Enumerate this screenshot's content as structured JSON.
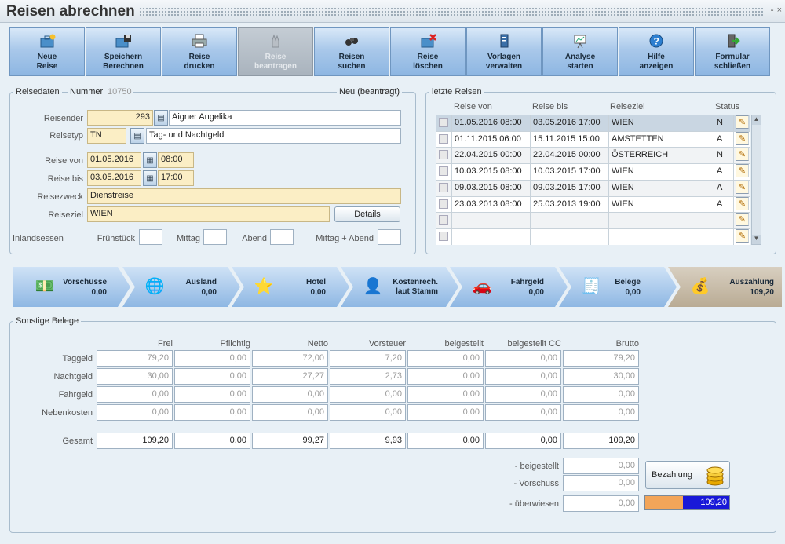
{
  "window": {
    "title": "Reisen abrechnen",
    "min": "▫",
    "close": "×"
  },
  "toolbar": [
    {
      "label": "Neue\nReise",
      "icon": "new-trip-icon",
      "enabled": true
    },
    {
      "label": "Speichern\nBerechnen",
      "icon": "save-icon",
      "enabled": true
    },
    {
      "label": "Reise\ndrucken",
      "icon": "print-icon",
      "enabled": true
    },
    {
      "label": "Reise\nbeantragen",
      "icon": "request-icon",
      "enabled": false
    },
    {
      "label": "Reisen\nsuchen",
      "icon": "binoculars-icon",
      "enabled": true
    },
    {
      "label": "Reise\nlöschen",
      "icon": "delete-icon",
      "enabled": true
    },
    {
      "label": "Vorlagen\nverwalten",
      "icon": "templates-icon",
      "enabled": true
    },
    {
      "label": "Analyse\nstarten",
      "icon": "analysis-icon",
      "enabled": true
    },
    {
      "label": "Hilfe\nanzeigen",
      "icon": "help-icon",
      "enabled": true
    },
    {
      "label": "Formular\nschließen",
      "icon": "exit-icon",
      "enabled": true
    }
  ],
  "reisedaten": {
    "section": "Reisedaten",
    "nummer_label": "Nummer",
    "nummer": "10750",
    "status": "Neu (beantragt)",
    "reisender_label": "Reisender",
    "reisender_id": "293",
    "reisender_name": "Aigner Angelika",
    "reisetyp_label": "Reisetyp",
    "reisetyp_code": "TN",
    "reisetyp_name": "Tag- und Nachtgeld",
    "von_label": "Reise von",
    "von_date": "01.05.2016",
    "von_time": "08:00",
    "bis_label": "Reise bis",
    "bis_date": "03.05.2016",
    "bis_time": "17:00",
    "zweck_label": "Reisezweck",
    "zweck": "Dienstreise",
    "ziel_label": "Reiseziel",
    "ziel": "WIEN",
    "details": "Details",
    "inland_label": "Inlandsessen",
    "fruehstueck": "Frühstück",
    "mittag": "Mittag",
    "abend": "Abend",
    "mittag_abend": "Mittag + Abend"
  },
  "letzte": {
    "section": "letzte Reisen",
    "headers": [
      "Reise von",
      "Reise bis",
      "Reiseziel",
      "Status"
    ],
    "rows": [
      {
        "von": "01.05.2016 08:00",
        "bis": "03.05.2016 17:00",
        "ziel": "WIEN",
        "status": "N"
      },
      {
        "von": "01.11.2015 06:00",
        "bis": "15.11.2015 15:00",
        "ziel": "AMSTETTEN",
        "status": "A"
      },
      {
        "von": "22.04.2015 00:00",
        "bis": "22.04.2015 00:00",
        "ziel": "ÖSTERREICH",
        "status": "N"
      },
      {
        "von": "10.03.2015 08:00",
        "bis": "10.03.2015 17:00",
        "ziel": "WIEN",
        "status": "A"
      },
      {
        "von": "09.03.2015 08:00",
        "bis": "09.03.2015 17:00",
        "ziel": "WIEN",
        "status": "A"
      },
      {
        "von": "23.03.2013 08:00",
        "bis": "25.03.2013 19:00",
        "ziel": "WIEN",
        "status": "A"
      },
      {
        "von": "",
        "bis": "",
        "ziel": "",
        "status": ""
      },
      {
        "von": "",
        "bis": "",
        "ziel": "",
        "status": ""
      }
    ]
  },
  "steps": [
    {
      "label": "Vorschüsse",
      "value": "0,00",
      "icon": "money-icon"
    },
    {
      "label": "Ausland",
      "value": "0,00",
      "icon": "globe-icon"
    },
    {
      "label": "Hotel",
      "value": "0,00",
      "icon": "stars-icon"
    },
    {
      "label": "Kostenrech.\nlaut Stamm",
      "value": "",
      "icon": "person-icon"
    },
    {
      "label": "Fahrgeld",
      "value": "0,00",
      "icon": "car-icon"
    },
    {
      "label": "Belege",
      "value": "0,00",
      "icon": "receipt-icon"
    },
    {
      "label": "Auszahlung",
      "value": "109,20",
      "icon": "payout-icon"
    }
  ],
  "belege": {
    "section": "Sonstige Belege",
    "columns": [
      "Frei",
      "Pflichtig",
      "Netto",
      "Vorsteuer",
      "beigestellt",
      "beigestellt CC",
      "Brutto"
    ],
    "rows": [
      {
        "label": "Taggeld",
        "values": [
          "79,20",
          "0,00",
          "72,00",
          "7,20",
          "0,00",
          "0,00",
          "79,20"
        ]
      },
      {
        "label": "Nachtgeld",
        "values": [
          "30,00",
          "0,00",
          "27,27",
          "2,73",
          "0,00",
          "0,00",
          "30,00"
        ]
      },
      {
        "label": "Fahrgeld",
        "values": [
          "0,00",
          "0,00",
          "0,00",
          "0,00",
          "0,00",
          "0,00",
          "0,00"
        ]
      },
      {
        "label": "Nebenkosten",
        "values": [
          "0,00",
          "0,00",
          "0,00",
          "0,00",
          "0,00",
          "0,00",
          "0,00"
        ]
      }
    ],
    "total": {
      "label": "Gesamt",
      "values": [
        "109,20",
        "0,00",
        "99,27",
        "9,93",
        "0,00",
        "0,00",
        "109,20"
      ]
    },
    "beigestellt_label": "- beigestellt",
    "beigestellt": "0,00",
    "vorschuss_label": "- Vorschuss",
    "vorschuss": "0,00",
    "ueberwiesen_label": "- überwiesen",
    "ueberwiesen": "0,00",
    "bezahlung": "Bezahlung",
    "progress_value": "109,20",
    "progress_paid_fraction": 0.45
  }
}
